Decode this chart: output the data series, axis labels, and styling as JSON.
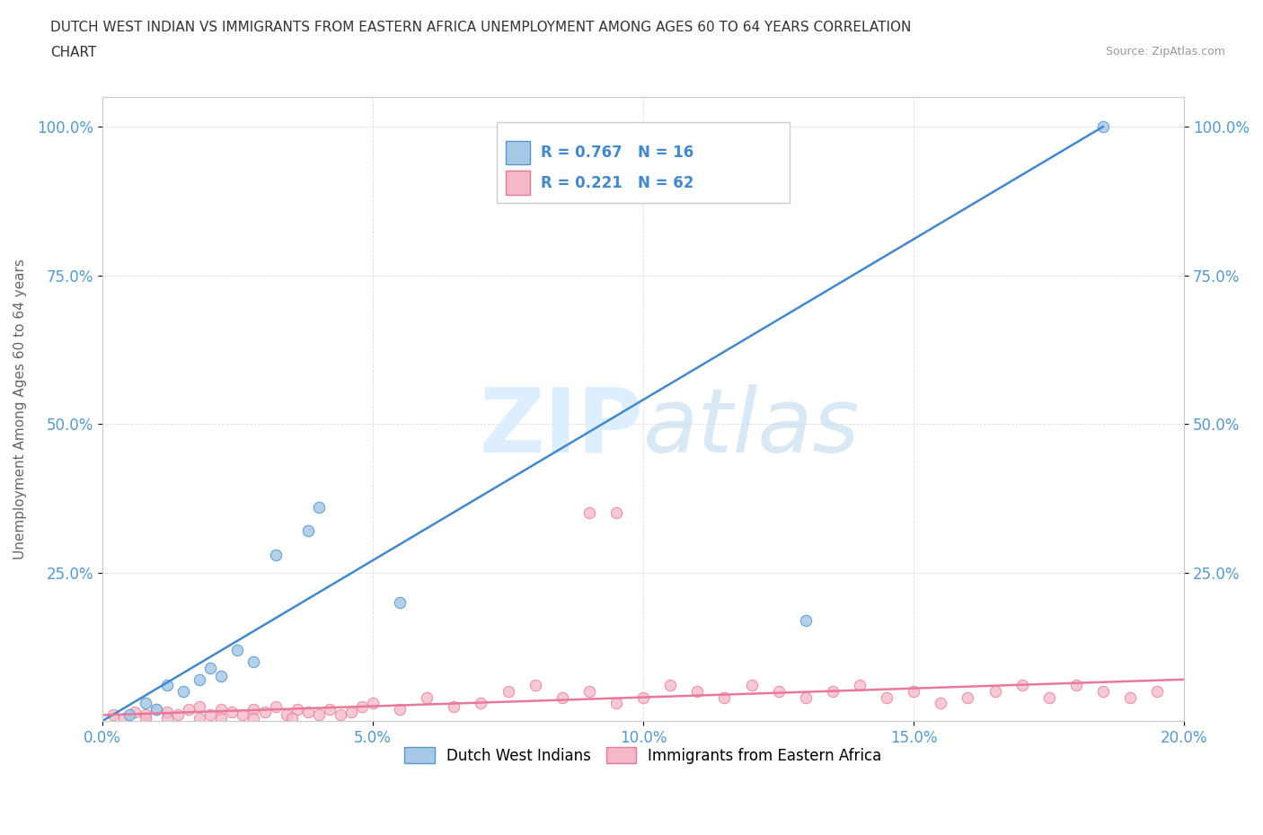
{
  "title_line1": "DUTCH WEST INDIAN VS IMMIGRANTS FROM EASTERN AFRICA UNEMPLOYMENT AMONG AGES 60 TO 64 YEARS CORRELATION",
  "title_line2": "CHART",
  "source_text": "Source: ZipAtlas.com",
  "ylabel": "Unemployment Among Ages 60 to 64 years",
  "xlim": [
    0.0,
    0.2
  ],
  "ylim": [
    0.0,
    1.05
  ],
  "xtick_labels": [
    "0.0%",
    "5.0%",
    "10.0%",
    "15.0%",
    "20.0%"
  ],
  "xtick_values": [
    0.0,
    0.05,
    0.1,
    0.15,
    0.2
  ],
  "ytick_labels": [
    "25.0%",
    "50.0%",
    "75.0%",
    "100.0%"
  ],
  "ytick_values": [
    0.25,
    0.5,
    0.75,
    1.0
  ],
  "blue_scatter_color": "#a8c8e8",
  "blue_edge_color": "#5599cc",
  "pink_scatter_color": "#f4b8c8",
  "pink_edge_color": "#e8799a",
  "blue_line_color": "#4488cc",
  "pink_line_color": "#e8799a",
  "tick_color": "#5599cc",
  "watermark_color": "#ddeeff",
  "legend_label1": "Dutch West Indians",
  "legend_label2": "Immigrants from Eastern Africa",
  "background_color": "#ffffff",
  "grid_color": "#dddddd",
  "blue_scatter_x": [
    0.005,
    0.008,
    0.01,
    0.012,
    0.015,
    0.018,
    0.02,
    0.022,
    0.025,
    0.028,
    0.032,
    0.038,
    0.04,
    0.055,
    0.13,
    0.185
  ],
  "blue_scatter_y": [
    0.01,
    0.03,
    0.02,
    0.06,
    0.05,
    0.07,
    0.09,
    0.075,
    0.12,
    0.1,
    0.28,
    0.32,
    0.36,
    0.2,
    0.17,
    1.0
  ],
  "pink_scatter_x": [
    0.002,
    0.004,
    0.006,
    0.008,
    0.01,
    0.012,
    0.014,
    0.016,
    0.018,
    0.02,
    0.022,
    0.024,
    0.026,
    0.028,
    0.03,
    0.032,
    0.034,
    0.036,
    0.038,
    0.04,
    0.042,
    0.044,
    0.046,
    0.048,
    0.05,
    0.055,
    0.06,
    0.065,
    0.07,
    0.075,
    0.08,
    0.085,
    0.09,
    0.095,
    0.1,
    0.105,
    0.11,
    0.115,
    0.12,
    0.125,
    0.13,
    0.135,
    0.14,
    0.145,
    0.15,
    0.155,
    0.16,
    0.165,
    0.17,
    0.175,
    0.18,
    0.185,
    0.19,
    0.195,
    0.008,
    0.012,
    0.018,
    0.022,
    0.028,
    0.035,
    0.09,
    0.095
  ],
  "pink_scatter_y": [
    0.01,
    0.005,
    0.015,
    0.01,
    0.02,
    0.015,
    0.01,
    0.02,
    0.025,
    0.01,
    0.02,
    0.015,
    0.01,
    0.02,
    0.015,
    0.025,
    0.01,
    0.02,
    0.015,
    0.01,
    0.02,
    0.01,
    0.015,
    0.025,
    0.03,
    0.02,
    0.04,
    0.025,
    0.03,
    0.05,
    0.06,
    0.04,
    0.05,
    0.03,
    0.04,
    0.06,
    0.05,
    0.04,
    0.06,
    0.05,
    0.04,
    0.05,
    0.06,
    0.04,
    0.05,
    0.03,
    0.04,
    0.05,
    0.06,
    0.04,
    0.06,
    0.05,
    0.04,
    0.05,
    0.005,
    0.005,
    0.005,
    0.005,
    0.005,
    0.005,
    0.35,
    0.35
  ],
  "blue_line_x": [
    0.0,
    0.185
  ],
  "blue_line_y": [
    0.0,
    1.0
  ],
  "pink_line_x": [
    0.0,
    0.2
  ],
  "pink_line_y": [
    0.01,
    0.07
  ]
}
